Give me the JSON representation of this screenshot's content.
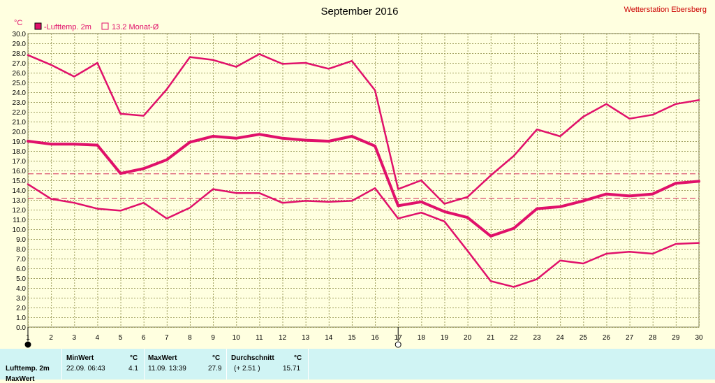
{
  "chart_data": {
    "type": "line",
    "title": "September 2016",
    "station": "Wetterstation Ebersberg",
    "ylabel": "°C",
    "ylim": [
      0,
      30
    ],
    "y_ticks": [
      "0.0",
      "1.0",
      "2.0",
      "3.0",
      "4.0",
      "5.0",
      "6.0",
      "7.0",
      "8.0",
      "9.0",
      "10.0",
      "11.0",
      "12.0",
      "13.0",
      "14.0",
      "15.0",
      "16.0",
      "17.0",
      "18.0",
      "19.0",
      "20.0",
      "21.0",
      "22.0",
      "23.0",
      "24.0",
      "25.0",
      "26.0",
      "27.0",
      "28.0",
      "29.0",
      "30.0"
    ],
    "x": [
      1,
      2,
      3,
      4,
      5,
      6,
      7,
      8,
      9,
      10,
      11,
      12,
      13,
      14,
      15,
      16,
      17,
      18,
      19,
      20,
      21,
      22,
      23,
      24,
      25,
      26,
      27,
      28,
      29,
      30
    ],
    "grid": true,
    "legend": [
      {
        "label": "-Lufttemp. 2m",
        "color": "#e0106a",
        "filled": true
      },
      {
        "label": "13.2 Monat-Ø",
        "color": "#e0106a",
        "filled": false
      }
    ],
    "series": [
      {
        "name": "max",
        "values": [
          27.8,
          26.8,
          25.6,
          27.0,
          21.8,
          21.6,
          24.3,
          27.6,
          27.3,
          26.6,
          27.9,
          26.9,
          27.0,
          26.4,
          27.2,
          24.2,
          14.1,
          15.0,
          12.6,
          13.3,
          15.5,
          17.5,
          20.2,
          19.5,
          21.5,
          22.8,
          21.3,
          21.7,
          22.8,
          23.2
        ],
        "width": 2.5
      },
      {
        "name": "mean",
        "values": [
          19.0,
          18.7,
          18.7,
          18.6,
          15.7,
          16.2,
          17.1,
          18.9,
          19.5,
          19.3,
          19.7,
          19.3,
          19.1,
          19.0,
          19.5,
          18.5,
          12.4,
          12.8,
          11.8,
          11.2,
          9.3,
          10.1,
          12.1,
          12.3,
          12.9,
          13.6,
          13.4,
          13.6,
          14.7,
          14.9
        ],
        "width": 4
      },
      {
        "name": "min",
        "values": [
          14.6,
          13.1,
          12.7,
          12.1,
          11.9,
          12.7,
          11.1,
          12.2,
          14.1,
          13.7,
          13.7,
          12.7,
          12.9,
          12.8,
          12.9,
          14.2,
          11.1,
          11.7,
          10.8,
          7.8,
          4.7,
          4.1,
          4.9,
          6.8,
          6.5,
          7.5,
          7.7,
          7.5,
          8.5,
          8.6
        ],
        "width": 2.5
      }
    ],
    "reference_lines": [
      {
        "value": 15.7,
        "color": "#d02050"
      },
      {
        "value": 13.2,
        "color": "#d02050"
      }
    ],
    "markers": [
      {
        "day": 1,
        "symbol": "full-moon-icon"
      },
      {
        "day": 17,
        "symbol": "new-moon-icon"
      }
    ],
    "line_color": "#e0106a",
    "background_color": "#ffffe0",
    "grid_color": "#a0a060"
  },
  "stats": {
    "row_label": "Lufttemp. 2m",
    "row2_label": "MaxWert",
    "min": {
      "header": "MinWert",
      "unit": "°C",
      "when": "22.09.  06:43",
      "value": "4.1"
    },
    "max": {
      "header": "MaxWert",
      "unit": "°C",
      "when": "11.09.  13:39",
      "value": "27.9"
    },
    "avg": {
      "header": "Durchschnitt",
      "unit": "°C",
      "delta": "(+ 2.51 )",
      "value": "15.71"
    }
  }
}
